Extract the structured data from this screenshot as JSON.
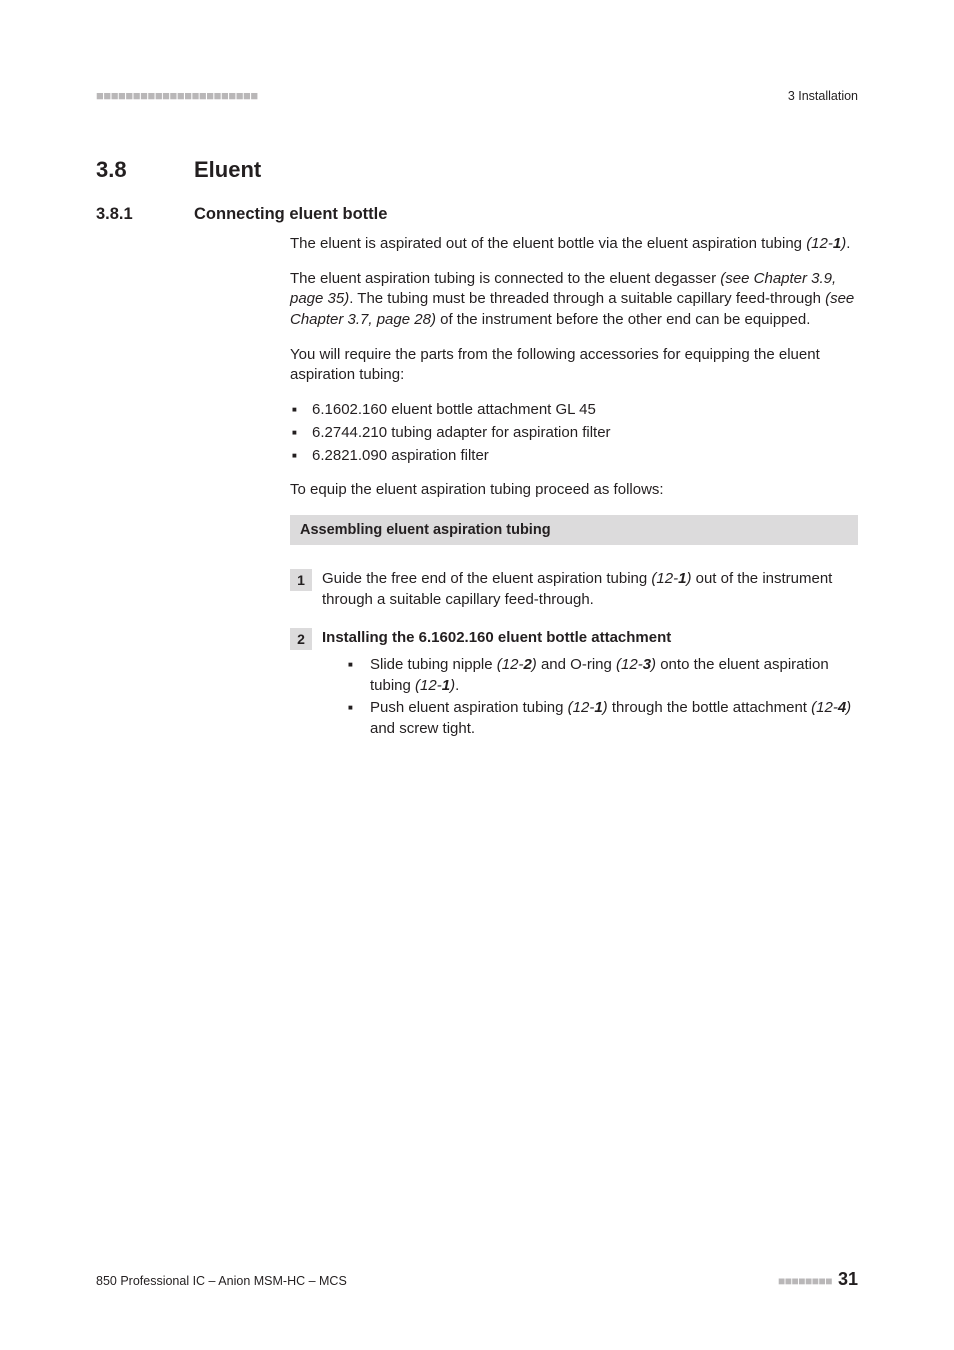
{
  "header": {
    "bars_left": "■■■■■■■■■■■■■■■■■■■■■■",
    "right": "3 Installation"
  },
  "h1": {
    "num": "3.8",
    "title": "Eluent"
  },
  "h2": {
    "num": "3.8.1",
    "title": "Connecting eluent bottle"
  },
  "p1_a": "The eluent is aspirated out of the eluent bottle via the eluent aspiration tubing ",
  "p1_ref_open": "(12-",
  "p1_ref_bold": "1",
  "p1_ref_close": ")",
  "p1_end": ".",
  "p2_a": "The eluent aspiration tubing is connected to the eluent degasser ",
  "p2_ref1": "(see Chapter 3.9, page 35)",
  "p2_b": ". The tubing must be threaded through a suitable capillary feed-through ",
  "p2_ref2": "(see Chapter 3.7, page 28)",
  "p2_c": " of the instrument before the other end can be equipped.",
  "p3": "You will require the parts from the following accessories for equipping the eluent aspiration tubing:",
  "parts": [
    "6.1602.160 eluent bottle attachment GL 45",
    "6.2744.210 tubing adapter for aspiration filter",
    "6.2821.090 aspiration filter"
  ],
  "p4": "To equip the eluent aspiration tubing proceed as follows:",
  "band": "Assembling eluent aspiration tubing",
  "step1": {
    "num": "1",
    "a": "Guide the free end of the eluent aspiration tubing ",
    "ref_open": "(12-",
    "ref_bold": "1",
    "ref_close": ")",
    "b": " out of the instrument through a suitable capillary feed-through."
  },
  "step2": {
    "num": "2",
    "title": "Installing the 6.1602.160 eluent bottle attachment",
    "li1_a": "Slide tubing nipple ",
    "li1_r1o": "(12-",
    "li1_r1b": "2",
    "li1_r1c": ")",
    "li1_b": " and O-ring ",
    "li1_r2o": "(12-",
    "li1_r2b": "3",
    "li1_r2c": ")",
    "li1_c": " onto the eluent aspiration tubing ",
    "li1_r3o": "(12-",
    "li1_r3b": "1",
    "li1_r3c": ")",
    "li1_d": ".",
    "li2_a": "Push eluent aspiration tubing ",
    "li2_r1o": "(12-",
    "li2_r1b": "1",
    "li2_r1c": ")",
    "li2_b": " through the bottle attachment ",
    "li2_r2o": "(12-",
    "li2_r2b": "4",
    "li2_r2c": ")",
    "li2_c": " and screw tight."
  },
  "footer": {
    "left": "850 Professional IC – Anion MSM-HC – MCS",
    "bars": "■■■■■■■■",
    "page": "31"
  }
}
